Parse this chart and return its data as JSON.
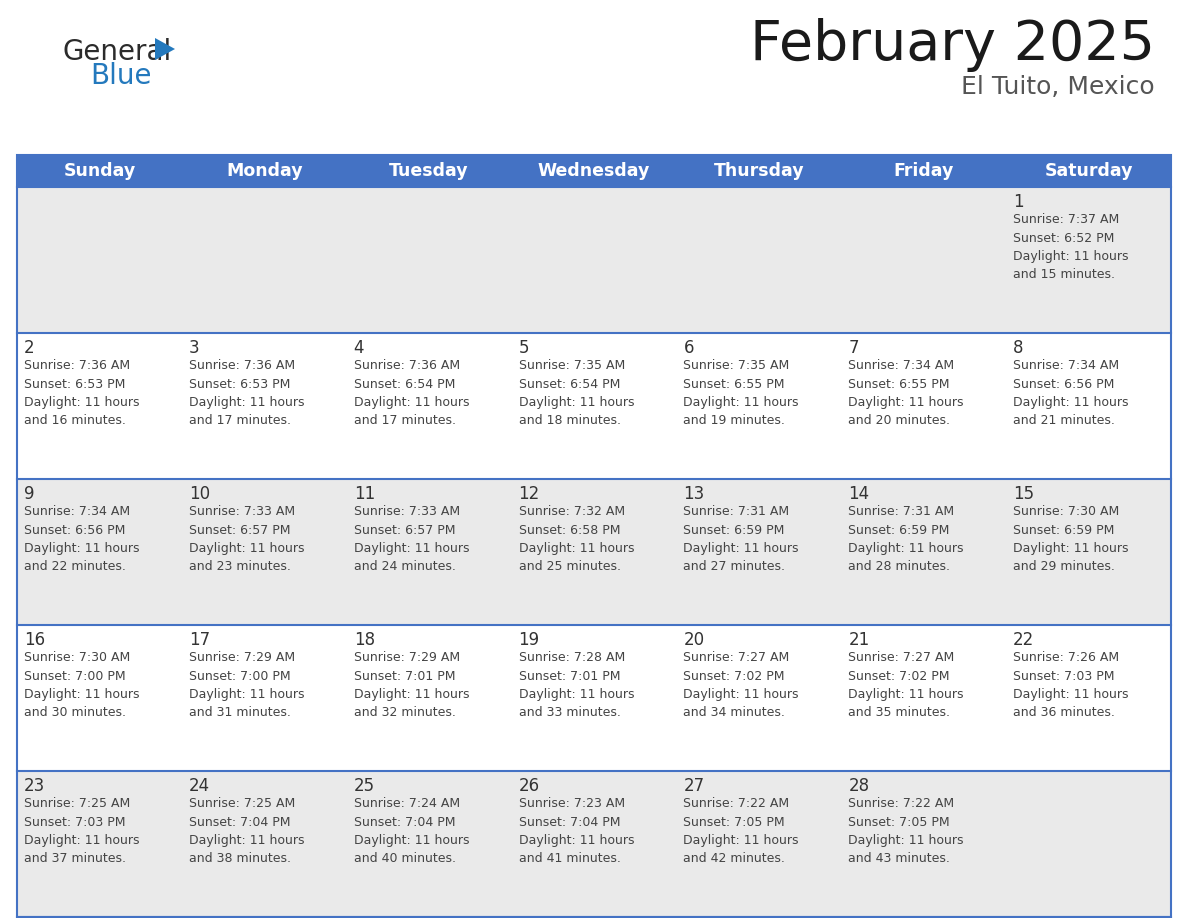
{
  "title": "February 2025",
  "subtitle": "El Tuito, Mexico",
  "header_bg": "#4472C4",
  "header_text_color": "#FFFFFF",
  "day_names": [
    "Sunday",
    "Monday",
    "Tuesday",
    "Wednesday",
    "Thursday",
    "Friday",
    "Saturday"
  ],
  "row_bg_even": "#EAEAEA",
  "row_bg_odd": "#FFFFFF",
  "cell_border_color": "#4472C4",
  "day_number_color": "#333333",
  "info_text_color": "#444444",
  "calendar": [
    [
      {
        "day": "",
        "info": ""
      },
      {
        "day": "",
        "info": ""
      },
      {
        "day": "",
        "info": ""
      },
      {
        "day": "",
        "info": ""
      },
      {
        "day": "",
        "info": ""
      },
      {
        "day": "",
        "info": ""
      },
      {
        "day": "1",
        "info": "Sunrise: 7:37 AM\nSunset: 6:52 PM\nDaylight: 11 hours\nand 15 minutes."
      }
    ],
    [
      {
        "day": "2",
        "info": "Sunrise: 7:36 AM\nSunset: 6:53 PM\nDaylight: 11 hours\nand 16 minutes."
      },
      {
        "day": "3",
        "info": "Sunrise: 7:36 AM\nSunset: 6:53 PM\nDaylight: 11 hours\nand 17 minutes."
      },
      {
        "day": "4",
        "info": "Sunrise: 7:36 AM\nSunset: 6:54 PM\nDaylight: 11 hours\nand 17 minutes."
      },
      {
        "day": "5",
        "info": "Sunrise: 7:35 AM\nSunset: 6:54 PM\nDaylight: 11 hours\nand 18 minutes."
      },
      {
        "day": "6",
        "info": "Sunrise: 7:35 AM\nSunset: 6:55 PM\nDaylight: 11 hours\nand 19 minutes."
      },
      {
        "day": "7",
        "info": "Sunrise: 7:34 AM\nSunset: 6:55 PM\nDaylight: 11 hours\nand 20 minutes."
      },
      {
        "day": "8",
        "info": "Sunrise: 7:34 AM\nSunset: 6:56 PM\nDaylight: 11 hours\nand 21 minutes."
      }
    ],
    [
      {
        "day": "9",
        "info": "Sunrise: 7:34 AM\nSunset: 6:56 PM\nDaylight: 11 hours\nand 22 minutes."
      },
      {
        "day": "10",
        "info": "Sunrise: 7:33 AM\nSunset: 6:57 PM\nDaylight: 11 hours\nand 23 minutes."
      },
      {
        "day": "11",
        "info": "Sunrise: 7:33 AM\nSunset: 6:57 PM\nDaylight: 11 hours\nand 24 minutes."
      },
      {
        "day": "12",
        "info": "Sunrise: 7:32 AM\nSunset: 6:58 PM\nDaylight: 11 hours\nand 25 minutes."
      },
      {
        "day": "13",
        "info": "Sunrise: 7:31 AM\nSunset: 6:59 PM\nDaylight: 11 hours\nand 27 minutes."
      },
      {
        "day": "14",
        "info": "Sunrise: 7:31 AM\nSunset: 6:59 PM\nDaylight: 11 hours\nand 28 minutes."
      },
      {
        "day": "15",
        "info": "Sunrise: 7:30 AM\nSunset: 6:59 PM\nDaylight: 11 hours\nand 29 minutes."
      }
    ],
    [
      {
        "day": "16",
        "info": "Sunrise: 7:30 AM\nSunset: 7:00 PM\nDaylight: 11 hours\nand 30 minutes."
      },
      {
        "day": "17",
        "info": "Sunrise: 7:29 AM\nSunset: 7:00 PM\nDaylight: 11 hours\nand 31 minutes."
      },
      {
        "day": "18",
        "info": "Sunrise: 7:29 AM\nSunset: 7:01 PM\nDaylight: 11 hours\nand 32 minutes."
      },
      {
        "day": "19",
        "info": "Sunrise: 7:28 AM\nSunset: 7:01 PM\nDaylight: 11 hours\nand 33 minutes."
      },
      {
        "day": "20",
        "info": "Sunrise: 7:27 AM\nSunset: 7:02 PM\nDaylight: 11 hours\nand 34 minutes."
      },
      {
        "day": "21",
        "info": "Sunrise: 7:27 AM\nSunset: 7:02 PM\nDaylight: 11 hours\nand 35 minutes."
      },
      {
        "day": "22",
        "info": "Sunrise: 7:26 AM\nSunset: 7:03 PM\nDaylight: 11 hours\nand 36 minutes."
      }
    ],
    [
      {
        "day": "23",
        "info": "Sunrise: 7:25 AM\nSunset: 7:03 PM\nDaylight: 11 hours\nand 37 minutes."
      },
      {
        "day": "24",
        "info": "Sunrise: 7:25 AM\nSunset: 7:04 PM\nDaylight: 11 hours\nand 38 minutes."
      },
      {
        "day": "25",
        "info": "Sunrise: 7:24 AM\nSunset: 7:04 PM\nDaylight: 11 hours\nand 40 minutes."
      },
      {
        "day": "26",
        "info": "Sunrise: 7:23 AM\nSunset: 7:04 PM\nDaylight: 11 hours\nand 41 minutes."
      },
      {
        "day": "27",
        "info": "Sunrise: 7:22 AM\nSunset: 7:05 PM\nDaylight: 11 hours\nand 42 minutes."
      },
      {
        "day": "28",
        "info": "Sunrise: 7:22 AM\nSunset: 7:05 PM\nDaylight: 11 hours\nand 43 minutes."
      },
      {
        "day": "",
        "info": ""
      }
    ]
  ],
  "logo_color_general": "#2B2B2B",
  "logo_color_blue": "#2479BD",
  "logo_triangle_color": "#2479BD",
  "title_color": "#1A1A1A",
  "subtitle_color": "#555555"
}
